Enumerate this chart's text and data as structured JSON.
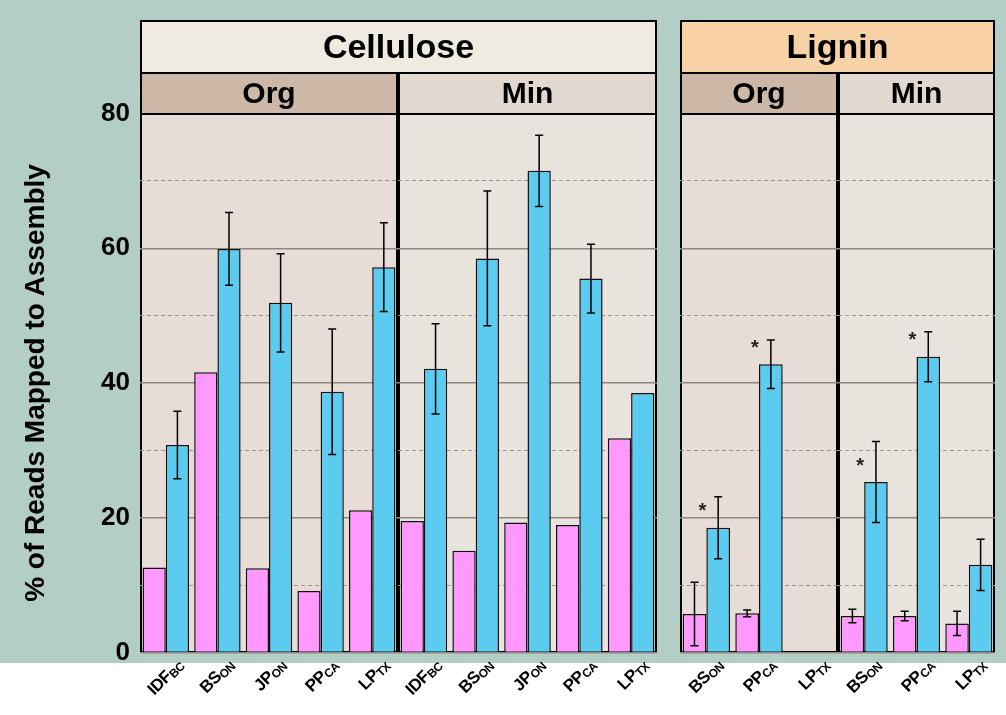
{
  "chart_data": [
    {
      "type": "bar",
      "title": "Cellulose",
      "subtitle": "Org",
      "ylabel": "% of Reads Mapped to Assembly",
      "categories": [
        "IDF$_{BC}$",
        "BS$_{ON}$",
        "JP$_{ON}$",
        "PP$_{CA}$",
        "LP$_{TX}$"
      ],
      "series": [
        {
          "color": "#ff99ff",
          "values": [
            12.6,
            41.6,
            12.5,
            9.1,
            21.1
          ]
        },
        {
          "color": "#5bcbef",
          "values": [
            30.8,
            59.9,
            51.9,
            38.7,
            57.2
          ],
          "errors": [
            5,
            5.4,
            7.3,
            9.3,
            6.6
          ]
        }
      ],
      "ylim": [
        0,
        80
      ],
      "yticks": [
        0,
        {
          "value": 10,
          "label": null
        },
        20,
        {
          "value": 30,
          "label": null
        },
        40,
        {
          "value": 50,
          "label": null
        },
        60,
        {
          "value": 70,
          "label": null
        },
        80
      ],
      "grid": "y",
      "legend": false
    },
    {
      "type": "bar",
      "subtitle": "Min",
      "categories": [
        "IDF$_{BC}$",
        "BS$_{ON}$",
        "JP$_{ON}$",
        "PP$_{CA}$",
        "LP$_{TX}$"
      ],
      "series": [
        {
          "color": "#ff99ff",
          "values": [
            19.5,
            15.1,
            19.3,
            18.9,
            31.8
          ]
        },
        {
          "color": "#5bcbef",
          "values": [
            42.1,
            58.5,
            71.5,
            55.5,
            38.5
          ],
          "errors": [
            6.7,
            10,
            5.3,
            5.1,
            null
          ]
        }
      ],
      "ylim": [
        0,
        80
      ],
      "yticks": [
        0,
        {
          "value": 10,
          "label": null
        },
        20,
        {
          "value": 30,
          "label": null
        },
        40,
        {
          "value": 50,
          "label": null
        },
        60,
        {
          "value": 70,
          "label": null
        },
        80
      ],
      "grid": "y",
      "legend": false,
      "tick_labels": "x"
    },
    {
      "type": "bar",
      "title": "Lignin",
      "subtitle": "Org",
      "categories": [
        "BS$_{ON}$",
        "PP$_{CA}$",
        "LP$_{TX}$"
      ],
      "series": [
        {
          "color": "#ff99ff",
          "values": [
            5.7,
            5.8,
            null
          ],
          "errors": [
            4.7,
            0.5,
            null
          ]
        },
        {
          "color": "#5bcbef",
          "values": [
            18.5,
            42.8,
            null
          ],
          "errors": [
            4.6,
            3.6,
            null
          ]
        }
      ],
      "ylim": [
        0,
        80
      ],
      "yticks": [
        0,
        {
          "value": 10,
          "label": null
        },
        20,
        {
          "value": 30,
          "label": null
        },
        40,
        {
          "value": 50,
          "label": null
        },
        60,
        {
          "value": 70,
          "label": null
        },
        80
      ],
      "grid": "y",
      "legend": false,
      "tick_labels": "x",
      "annotations": [
        {
          "text": "*",
          "x": "BS$_{ON}$",
          "y": 18.5
        },
        {
          "text": "*",
          "x": "PP$_{CA}$",
          "y": 42.8
        }
      ]
    },
    {
      "type": "bar",
      "subtitle": "Min",
      "categories": [
        "BS$_{ON}$",
        "PP$_{CA}$",
        "LP$_{TX}$"
      ],
      "series": [
        {
          "color": "#ff99ff",
          "values": [
            5.4,
            5.4,
            4.3
          ],
          "errors": [
            1,
            0.7,
            1.8
          ]
        },
        {
          "color": "#5bcbef",
          "values": [
            25.3,
            43.9,
            13
          ],
          "errors": [
            6,
            3.7,
            3.8
          ]
        }
      ],
      "ylim": [
        0,
        80
      ],
      "yticks": [
        0,
        {
          "value": 10,
          "label": null
        },
        20,
        {
          "value": 30,
          "label": null
        },
        40,
        {
          "value": 50,
          "label": null
        },
        60,
        {
          "value": 70,
          "label": null
        },
        80
      ],
      "grid": "y",
      "legend": false,
      "tick_labels": "x",
      "annotations": [
        {
          "text": "*",
          "x": "BS$_{ON}$",
          "y": 25.3
        },
        {
          "text": "*",
          "x": "PP$_{CA}$",
          "y": 43.9
        }
      ]
    }
  ]
}
